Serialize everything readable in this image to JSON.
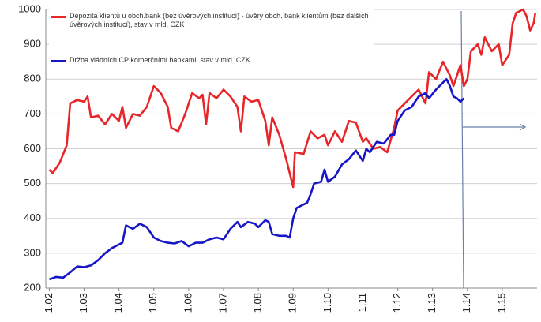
{
  "chart_data": {
    "type": "line",
    "xlim": [
      2001.9,
      2016.0
    ],
    "ylim": [
      200,
      1000
    ],
    "yticks": [
      200,
      300,
      400,
      500,
      600,
      700,
      800,
      900,
      1000
    ],
    "xticks": [
      {
        "value": 2002,
        "label": "1.02"
      },
      {
        "value": 2003,
        "label": "1.03"
      },
      {
        "value": 2004,
        "label": "1.04"
      },
      {
        "value": 2005,
        "label": "1.05"
      },
      {
        "value": 2006,
        "label": "1.06"
      },
      {
        "value": 2007,
        "label": "1.07"
      },
      {
        "value": 2008,
        "label": "1.08"
      },
      {
        "value": 2009,
        "label": "1.09"
      },
      {
        "value": 2010,
        "label": "1.10"
      },
      {
        "value": 2011,
        "label": "1.11"
      },
      {
        "value": 2012,
        "label": "1.12"
      },
      {
        "value": 2013,
        "label": "1.13"
      },
      {
        "value": 2014,
        "label": "1.14"
      },
      {
        "value": 2015,
        "label": "1.15"
      }
    ],
    "grid": true,
    "series": [
      {
        "name": "Depozita klientů u obch.bank (bez úvěrových institucí) - úvěry obch. bank klientům (bez dalších úvěrových institucí), stav v mld. CZK",
        "color": "#e8262a",
        "x": [
          2002.0,
          2002.1,
          2002.3,
          2002.5,
          2002.6,
          2002.8,
          2003.0,
          2003.1,
          2003.2,
          2003.4,
          2003.6,
          2003.8,
          2004.0,
          2004.1,
          2004.2,
          2004.4,
          2004.6,
          2004.8,
          2005.0,
          2005.2,
          2005.4,
          2005.5,
          2005.7,
          2005.9,
          2006.1,
          2006.3,
          2006.4,
          2006.5,
          2006.6,
          2006.8,
          2007.0,
          2007.2,
          2007.4,
          2007.5,
          2007.6,
          2007.8,
          2008.0,
          2008.2,
          2008.3,
          2008.4,
          2008.6,
          2008.8,
          2009.0,
          2009.05,
          2009.3,
          2009.5,
          2009.7,
          2009.9,
          2010.0,
          2010.2,
          2010.4,
          2010.6,
          2010.8,
          2011.0,
          2011.1,
          2011.3,
          2011.5,
          2011.7,
          2011.9,
          2012.0,
          2012.2,
          2012.4,
          2012.6,
          2012.8,
          2012.9,
          2013.1,
          2013.3,
          2013.5,
          2013.6,
          2013.8,
          2013.9,
          2014.0,
          2014.1,
          2014.3,
          2014.4,
          2014.5,
          2014.7,
          2014.9,
          2015.0,
          2015.2,
          2015.3,
          2015.4,
          2015.6,
          2015.7,
          2015.8,
          2015.9,
          2015.95
        ],
        "values": [
          540,
          530,
          560,
          610,
          730,
          740,
          735,
          750,
          690,
          695,
          670,
          700,
          680,
          720,
          660,
          700,
          695,
          720,
          780,
          760,
          720,
          660,
          650,
          700,
          760,
          745,
          755,
          670,
          760,
          745,
          770,
          750,
          720,
          650,
          750,
          735,
          740,
          680,
          610,
          690,
          640,
          570,
          490,
          590,
          585,
          650,
          630,
          640,
          610,
          650,
          620,
          680,
          675,
          620,
          630,
          600,
          605,
          590,
          660,
          710,
          730,
          750,
          770,
          730,
          820,
          800,
          850,
          810,
          780,
          840,
          780,
          800,
          880,
          900,
          870,
          920,
          880,
          900,
          840,
          870,
          960,
          990,
          1000,
          980,
          940,
          960,
          990
        ]
      },
      {
        "name": "Držba vládních CP komerčními bankami, stav v mld. CZK",
        "color": "#1616c8",
        "x": [
          2002.0,
          2002.2,
          2002.4,
          2002.6,
          2002.8,
          2003.0,
          2003.2,
          2003.4,
          2003.6,
          2003.8,
          2004.0,
          2004.1,
          2004.2,
          2004.4,
          2004.6,
          2004.8,
          2005.0,
          2005.2,
          2005.4,
          2005.6,
          2005.8,
          2006.0,
          2006.2,
          2006.4,
          2006.6,
          2006.8,
          2007.0,
          2007.2,
          2007.4,
          2007.5,
          2007.7,
          2007.9,
          2008.0,
          2008.2,
          2008.3,
          2008.4,
          2008.6,
          2008.8,
          2008.9,
          2009.0,
          2009.1,
          2009.3,
          2009.4,
          2009.5,
          2009.6,
          2009.8,
          2009.9,
          2010.0,
          2010.2,
          2010.4,
          2010.6,
          2010.8,
          2011.0,
          2011.1,
          2011.2,
          2011.4,
          2011.6,
          2011.8,
          2011.9,
          2012.0,
          2012.2,
          2012.4,
          2012.6,
          2012.8,
          2012.9,
          2013.1,
          2013.3,
          2013.4,
          2013.5,
          2013.6,
          2013.7,
          2013.8,
          2013.9
        ],
        "values": [
          225,
          232,
          230,
          245,
          262,
          260,
          265,
          280,
          300,
          315,
          325,
          330,
          380,
          370,
          385,
          375,
          345,
          335,
          330,
          328,
          335,
          320,
          330,
          330,
          340,
          345,
          340,
          370,
          390,
          375,
          390,
          385,
          375,
          395,
          390,
          355,
          350,
          350,
          345,
          400,
          430,
          440,
          445,
          470,
          500,
          505,
          540,
          505,
          520,
          555,
          570,
          595,
          565,
          600,
          590,
          620,
          615,
          640,
          640,
          680,
          710,
          720,
          750,
          760,
          745,
          770,
          790,
          800,
          780,
          750,
          745,
          735,
          745
        ]
      }
    ]
  }
}
